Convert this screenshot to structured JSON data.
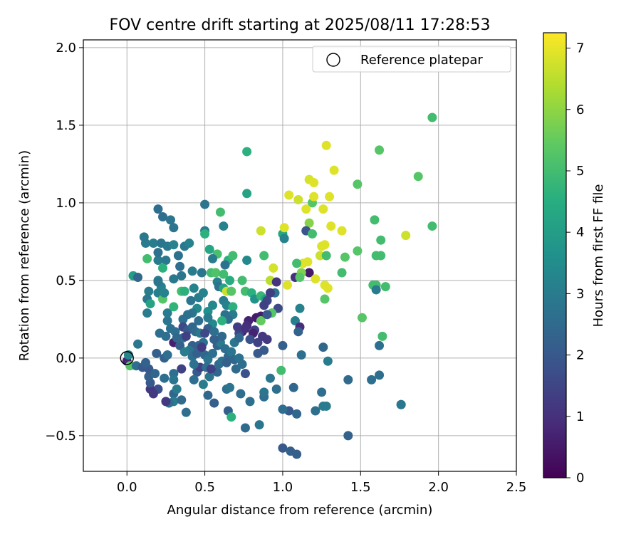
{
  "chart_data": {
    "type": "scatter",
    "title": "FOV centre drift starting at 2025/08/11 17:28:53",
    "xlabel": "Angular distance from reference (arcmin)",
    "ylabel": "Rotation from reference (arcmin)",
    "xlim": [
      -0.28,
      2.5
    ],
    "ylim": [
      -0.73,
      2.05
    ],
    "xticks": [
      0.0,
      0.5,
      1.0,
      1.5,
      2.0,
      2.5
    ],
    "yticks": [
      -0.5,
      0.0,
      0.5,
      1.0,
      1.5,
      2.0
    ],
    "xtick_labels": [
      "0.0",
      "0.5",
      "1.0",
      "1.5",
      "2.0",
      "2.5"
    ],
    "ytick_labels": [
      "−0.5",
      "0.0",
      "0.5",
      "1.0",
      "1.5",
      "2.0"
    ],
    "grid": true,
    "legend": {
      "position": "top-right",
      "entries": [
        "Reference platepar"
      ]
    },
    "reference_point": {
      "x": 0.0,
      "y": 0.0
    },
    "colorbar": {
      "label": "Hours from first FF file",
      "colormap": "viridis",
      "range": [
        0,
        7.25
      ],
      "ticks": [
        0,
        1,
        2,
        3,
        4,
        5,
        6,
        7
      ],
      "tick_labels": [
        "0",
        "1",
        "2",
        "3",
        "4",
        "5",
        "6",
        "7"
      ]
    },
    "points": [
      [
        0.0,
        -0.02,
        0.7
      ],
      [
        0.01,
        0.02,
        3.3
      ],
      [
        0.02,
        -0.05,
        5.3
      ],
      [
        0.06,
        -0.05,
        2.6
      ],
      [
        0.07,
        0.09,
        2.9
      ],
      [
        0.04,
        0.53,
        4.0
      ],
      [
        0.07,
        0.52,
        2.4
      ],
      [
        0.12,
        0.74,
        3.0
      ],
      [
        0.11,
        0.78,
        2.9
      ],
      [
        0.13,
        0.64,
        5.0
      ],
      [
        0.17,
        0.74,
        3.0
      ],
      [
        0.14,
        0.43,
        3.0
      ],
      [
        0.13,
        0.38,
        2.9
      ],
      [
        0.15,
        0.35,
        4.2
      ],
      [
        0.13,
        0.29,
        3.0
      ],
      [
        0.2,
        0.96,
        2.6
      ],
      [
        0.23,
        0.91,
        2.6
      ],
      [
        0.28,
        0.89,
        2.8
      ],
      [
        0.3,
        0.84,
        2.8
      ],
      [
        0.22,
        0.74,
        2.8
      ],
      [
        0.26,
        0.72,
        2.9
      ],
      [
        0.3,
        0.73,
        3.2
      ],
      [
        0.2,
        0.63,
        3.0
      ],
      [
        0.25,
        0.63,
        2.9
      ],
      [
        0.23,
        0.58,
        4.6
      ],
      [
        0.2,
        0.68,
        2.7
      ],
      [
        0.33,
        0.66,
        2.7
      ],
      [
        0.34,
        0.59,
        2.6
      ],
      [
        0.37,
        0.72,
        2.9
      ],
      [
        0.4,
        0.74,
        3.2
      ],
      [
        0.5,
        0.99,
        2.8
      ],
      [
        0.5,
        0.82,
        3.0
      ],
      [
        0.5,
        0.8,
        4.6
      ],
      [
        0.62,
        0.85,
        3.2
      ],
      [
        0.6,
        0.94,
        5.0
      ],
      [
        0.77,
        1.33,
        4.6
      ],
      [
        0.77,
        1.06,
        4.2
      ],
      [
        0.86,
        0.82,
        6.7
      ],
      [
        0.88,
        0.66,
        5.0
      ],
      [
        0.77,
        0.63,
        3.4
      ],
      [
        0.53,
        0.7,
        4.3
      ],
      [
        0.58,
        0.67,
        5.1
      ],
      [
        0.55,
        0.64,
        3.0
      ],
      [
        0.65,
        0.63,
        4.6
      ],
      [
        0.68,
        0.66,
        5.0
      ],
      [
        0.42,
        0.56,
        3.0
      ],
      [
        0.48,
        0.55,
        2.8
      ],
      [
        0.54,
        0.55,
        5.0
      ],
      [
        0.57,
        0.55,
        5.2
      ],
      [
        0.62,
        0.54,
        5.0
      ],
      [
        0.63,
        0.6,
        2.7
      ],
      [
        0.58,
        0.49,
        3.1
      ],
      [
        0.66,
        0.5,
        4.5
      ],
      [
        0.74,
        0.5,
        5.0
      ],
      [
        0.59,
        0.46,
        2.7
      ],
      [
        0.62,
        0.45,
        4.2
      ],
      [
        0.64,
        0.43,
        6.7
      ],
      [
        0.67,
        0.43,
        5.3
      ],
      [
        0.76,
        0.43,
        5.0
      ],
      [
        0.8,
        0.42,
        4.6
      ],
      [
        0.82,
        0.38,
        3.7
      ],
      [
        0.86,
        0.4,
        4.8
      ],
      [
        0.89,
        0.38,
        4.0
      ],
      [
        0.92,
        0.5,
        6.5
      ],
      [
        0.94,
        0.58,
        6.8
      ],
      [
        0.96,
        0.49,
        1.1
      ],
      [
        0.95,
        0.42,
        2.8
      ],
      [
        0.92,
        0.42,
        1.3
      ],
      [
        0.9,
        0.37,
        1.5
      ],
      [
        0.97,
        0.32,
        1.6
      ],
      [
        0.86,
        0.27,
        0.6
      ],
      [
        0.83,
        0.26,
        0.5
      ],
      [
        0.82,
        0.18,
        1.4
      ],
      [
        0.86,
        0.24,
        5.5
      ],
      [
        0.93,
        0.29,
        5.3
      ],
      [
        0.88,
        0.34,
        1.4
      ],
      [
        0.9,
        0.28,
        2.0
      ],
      [
        0.78,
        0.24,
        0.7
      ],
      [
        0.77,
        0.21,
        0.9
      ],
      [
        0.81,
        0.16,
        0.7
      ],
      [
        0.74,
        0.17,
        0.6
      ],
      [
        0.72,
        0.16,
        1.6
      ],
      [
        0.71,
        0.2,
        1.3
      ],
      [
        0.76,
        0.19,
        1.0
      ],
      [
        0.79,
        0.12,
        1.8
      ],
      [
        0.84,
        0.1,
        1.4
      ],
      [
        0.87,
        0.14,
        1.2
      ],
      [
        0.9,
        0.12,
        1.2
      ],
      [
        0.88,
        0.05,
        2.0
      ],
      [
        0.84,
        0.03,
        2.0
      ],
      [
        1.0,
        0.8,
        4.3
      ],
      [
        1.01,
        0.77,
        3.2
      ],
      [
        1.01,
        0.84,
        6.9
      ],
      [
        1.04,
        1.05,
        6.9
      ],
      [
        1.1,
        1.02,
        6.7
      ],
      [
        1.17,
        1.15,
        6.8
      ],
      [
        1.2,
        1.13,
        6.9
      ],
      [
        1.19,
        1.0,
        5.3
      ],
      [
        1.2,
        1.04,
        6.9
      ],
      [
        1.15,
        0.96,
        6.9
      ],
      [
        1.17,
        0.87,
        5.9
      ],
      [
        1.15,
        0.82,
        1.9
      ],
      [
        1.19,
        0.8,
        5.0
      ],
      [
        1.26,
        0.96,
        6.9
      ],
      [
        1.28,
        1.37,
        6.9
      ],
      [
        1.33,
        1.21,
        6.9
      ],
      [
        1.3,
        1.04,
        6.9
      ],
      [
        1.31,
        0.85,
        6.9
      ],
      [
        1.38,
        0.82,
        6.9
      ],
      [
        1.4,
        0.65,
        5.3
      ],
      [
        1.48,
        1.12,
        5.3
      ],
      [
        1.48,
        0.69,
        5.3
      ],
      [
        1.59,
        0.89,
        5.0
      ],
      [
        1.62,
        1.34,
        5.3
      ],
      [
        1.63,
        0.76,
        5.0
      ],
      [
        1.63,
        0.66,
        5.0
      ],
      [
        1.66,
        0.46,
        5.0
      ],
      [
        1.6,
        0.47,
        5.0
      ],
      [
        1.58,
        0.47,
        5.0
      ],
      [
        1.6,
        0.44,
        3.0
      ],
      [
        1.64,
        0.14,
        5.0
      ],
      [
        1.62,
        0.08,
        2.6
      ],
      [
        1.6,
        0.66,
        5.0
      ],
      [
        1.79,
        0.79,
        6.7
      ],
      [
        1.87,
        1.17,
        5.3
      ],
      [
        1.96,
        1.55,
        5.0
      ],
      [
        1.96,
        0.85,
        5.0
      ],
      [
        1.51,
        0.26,
        5.3
      ],
      [
        1.38,
        0.55,
        5.0
      ],
      [
        1.25,
        0.72,
        6.9
      ],
      [
        1.24,
        0.66,
        6.7
      ],
      [
        1.27,
        0.73,
        6.9
      ],
      [
        1.28,
        0.66,
        5.0
      ],
      [
        1.27,
        0.47,
        6.9
      ],
      [
        1.29,
        0.45,
        6.9
      ],
      [
        1.27,
        0.38,
        5.3
      ],
      [
        1.17,
        0.55,
        0.5
      ],
      [
        1.21,
        0.51,
        6.9
      ],
      [
        1.13,
        0.61,
        6.9
      ],
      [
        1.16,
        0.62,
        6.9
      ],
      [
        1.09,
        0.61,
        5.0
      ],
      [
        1.08,
        0.52,
        1.0
      ],
      [
        1.03,
        0.47,
        6.9
      ],
      [
        1.12,
        0.55,
        5.8
      ],
      [
        1.11,
        0.52,
        5.3
      ],
      [
        1.11,
        0.32,
        3.2
      ],
      [
        1.08,
        0.24,
        3.1
      ],
      [
        1.11,
        0.2,
        0.9
      ],
      [
        1.1,
        0.17,
        2.3
      ],
      [
        1.0,
        0.08,
        2.2
      ],
      [
        1.12,
        0.02,
        2.6
      ],
      [
        1.26,
        0.07,
        2.4
      ],
      [
        1.29,
        -0.02,
        3.0
      ],
      [
        0.99,
        -0.08,
        5.0
      ],
      [
        1.07,
        -0.19,
        2.4
      ],
      [
        1.25,
        -0.22,
        2.6
      ],
      [
        1.42,
        -0.14,
        2.5
      ],
      [
        1.28,
        -0.31,
        3.0
      ],
      [
        1.26,
        -0.31,
        3.0
      ],
      [
        1.21,
        -0.34,
        2.6
      ],
      [
        1.04,
        -0.34,
        2.0
      ],
      [
        1.0,
        -0.33,
        2.6
      ],
      [
        1.09,
        -0.36,
        2.4
      ],
      [
        1.42,
        -0.5,
        2.3
      ],
      [
        1.76,
        -0.3,
        2.7
      ],
      [
        1.76,
        -0.3,
        2.9
      ],
      [
        1.57,
        -0.14,
        2.6
      ],
      [
        1.62,
        -0.11,
        2.6
      ],
      [
        1.0,
        -0.58,
        2.0
      ],
      [
        1.05,
        -0.6,
        2.2
      ],
      [
        1.09,
        -0.62,
        2.2
      ],
      [
        0.76,
        -0.45,
        2.5
      ],
      [
        0.85,
        -0.43,
        2.8
      ],
      [
        0.79,
        -0.28,
        2.6
      ],
      [
        0.88,
        -0.25,
        2.6
      ],
      [
        0.88,
        -0.22,
        2.8
      ],
      [
        0.92,
        -0.13,
        2.8
      ],
      [
        0.96,
        -0.2,
        2.6
      ],
      [
        0.73,
        -0.23,
        2.6
      ],
      [
        0.65,
        -0.34,
        2.2
      ],
      [
        0.67,
        -0.38,
        4.6
      ],
      [
        0.56,
        -0.29,
        2.2
      ],
      [
        0.52,
        -0.24,
        2.4
      ],
      [
        0.49,
        -0.17,
        3.0
      ],
      [
        0.64,
        -0.2,
        2.6
      ],
      [
        0.66,
        -0.19,
        2.8
      ],
      [
        0.76,
        -0.1,
        1.8
      ],
      [
        0.7,
        -0.07,
        2.5
      ],
      [
        0.58,
        -0.09,
        2.4
      ],
      [
        0.53,
        -0.12,
        2.8
      ],
      [
        0.45,
        -0.09,
        2.0
      ],
      [
        0.43,
        -0.14,
        2.6
      ],
      [
        0.47,
        -0.06,
        1.4
      ],
      [
        0.43,
        -0.04,
        2.7
      ],
      [
        0.35,
        -0.07,
        1.4
      ],
      [
        0.3,
        -0.1,
        2.6
      ],
      [
        0.3,
        -0.14,
        2.8
      ],
      [
        0.3,
        -0.23,
        2.4
      ],
      [
        0.3,
        -0.28,
        3.0
      ],
      [
        0.35,
        -0.27,
        2.5
      ],
      [
        0.38,
        -0.35,
        2.6
      ],
      [
        0.32,
        -0.2,
        3.0
      ],
      [
        0.27,
        -0.29,
        2.6
      ],
      [
        0.25,
        -0.28,
        1.2
      ],
      [
        0.2,
        -0.2,
        1.8
      ],
      [
        0.15,
        -0.2,
        1.2
      ],
      [
        0.17,
        -0.23,
        1.2
      ],
      [
        0.15,
        -0.16,
        2.0
      ],
      [
        0.14,
        -0.12,
        2.2
      ],
      [
        0.14,
        -0.07,
        2.0
      ],
      [
        0.1,
        -0.06,
        2.0
      ],
      [
        0.12,
        -0.03,
        2.3
      ],
      [
        0.18,
        -0.1,
        2.4
      ],
      [
        0.24,
        -0.13,
        2.6
      ],
      [
        0.19,
        0.03,
        2.2
      ],
      [
        0.24,
        0.0,
        2.2
      ],
      [
        0.26,
        0.02,
        2.6
      ],
      [
        0.3,
        0.1,
        0.6
      ],
      [
        0.34,
        0.08,
        2.2
      ],
      [
        0.36,
        0.13,
        2.6
      ],
      [
        0.25,
        0.14,
        2.6
      ],
      [
        0.28,
        0.19,
        2.6
      ],
      [
        0.26,
        0.24,
        2.8
      ],
      [
        0.21,
        0.16,
        2.6
      ],
      [
        0.26,
        0.29,
        3.0
      ],
      [
        0.3,
        0.33,
        4.7
      ],
      [
        0.22,
        0.46,
        3.2
      ],
      [
        0.2,
        0.5,
        3.2
      ],
      [
        0.2,
        0.49,
        2.8
      ],
      [
        0.2,
        0.42,
        3.1
      ],
      [
        0.23,
        0.38,
        5.3
      ],
      [
        0.24,
        0.42,
        3.2
      ],
      [
        0.3,
        0.51,
        2.9
      ],
      [
        0.35,
        0.53,
        2.8
      ],
      [
        0.35,
        0.43,
        5.0
      ],
      [
        0.37,
        0.43,
        4.6
      ],
      [
        0.43,
        0.45,
        3.2
      ],
      [
        0.41,
        0.37,
        2.8
      ],
      [
        0.46,
        0.39,
        3.0
      ],
      [
        0.49,
        0.42,
        3.2
      ],
      [
        0.45,
        0.32,
        3.4
      ],
      [
        0.52,
        0.3,
        3.6
      ],
      [
        0.55,
        0.34,
        3.4
      ],
      [
        0.62,
        0.37,
        3.0
      ],
      [
        0.64,
        0.34,
        3.2
      ],
      [
        0.68,
        0.33,
        4.6
      ],
      [
        0.68,
        0.28,
        3.0
      ],
      [
        0.65,
        0.25,
        2.6
      ],
      [
        0.63,
        0.28,
        2.7
      ],
      [
        0.61,
        0.24,
        4.6
      ],
      [
        0.55,
        0.22,
        3.4
      ],
      [
        0.52,
        0.26,
        3.0
      ],
      [
        0.52,
        0.19,
        2.2
      ],
      [
        0.46,
        0.24,
        2.6
      ],
      [
        0.42,
        0.29,
        2.8
      ],
      [
        0.39,
        0.28,
        2.7
      ],
      [
        0.36,
        0.25,
        2.6
      ],
      [
        0.36,
        0.2,
        1.6
      ],
      [
        0.39,
        0.18,
        2.0
      ],
      [
        0.42,
        0.2,
        2.4
      ],
      [
        0.44,
        0.17,
        2.5
      ],
      [
        0.47,
        0.16,
        2.9
      ],
      [
        0.49,
        0.1,
        2.7
      ],
      [
        0.46,
        0.08,
        2.4
      ],
      [
        0.42,
        0.08,
        2.2
      ],
      [
        0.4,
        0.05,
        2.8
      ],
      [
        0.37,
        0.04,
        3.0
      ],
      [
        0.42,
        0.01,
        2.6
      ],
      [
        0.45,
        0.03,
        2.2
      ],
      [
        0.5,
        0.02,
        2.4
      ],
      [
        0.52,
        -0.01,
        2.8
      ],
      [
        0.55,
        0.03,
        2.6
      ],
      [
        0.58,
        0.08,
        2.3
      ],
      [
        0.6,
        0.1,
        3.0
      ],
      [
        0.61,
        0.14,
        2.4
      ],
      [
        0.63,
        0.06,
        2.6
      ],
      [
        0.65,
        0.01,
        2.4
      ],
      [
        0.67,
        0.04,
        2.8
      ],
      [
        0.69,
        -0.01,
        2.4
      ],
      [
        0.72,
        0.0,
        2.7
      ],
      [
        0.74,
        -0.04,
        2.6
      ],
      [
        0.69,
        0.1,
        2.8
      ],
      [
        0.72,
        0.13,
        2.4
      ],
      [
        0.56,
        0.12,
        2.2
      ],
      [
        0.56,
        0.17,
        2.6
      ],
      [
        0.51,
        -0.06,
        2.6
      ],
      [
        0.54,
        -0.07,
        1.4
      ],
      [
        0.59,
        -0.04,
        2.5
      ],
      [
        0.61,
        -0.02,
        2.7
      ],
      [
        0.64,
        -0.03,
        2.2
      ],
      [
        0.48,
        0.07,
        1.3
      ],
      [
        0.5,
        0.16,
        1.6
      ],
      [
        0.38,
        0.14,
        1.4
      ],
      [
        0.31,
        0.17,
        2.6
      ],
      [
        0.32,
        0.13,
        2.4
      ]
    ]
  }
}
